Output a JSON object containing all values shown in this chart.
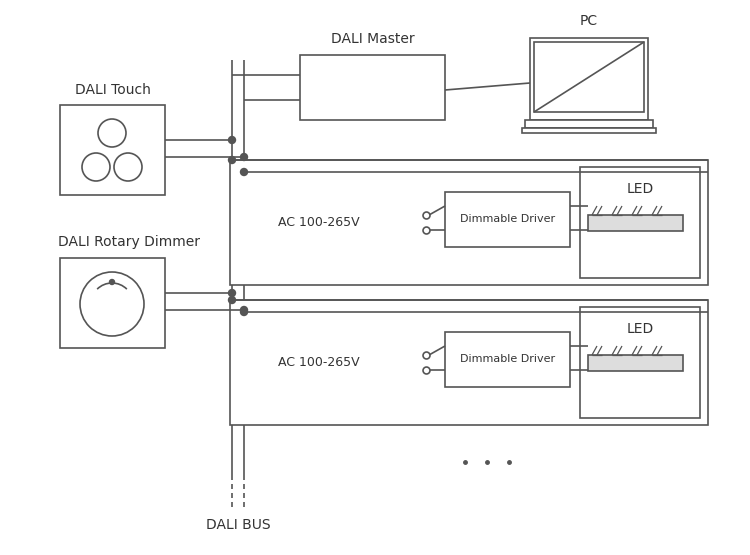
{
  "bg_color": "#ffffff",
  "line_color": "#555555",
  "text_color": "#333333",
  "labels": {
    "dali_touch": "DALI Touch",
    "dali_rotary": "DALI Rotary Dimmer",
    "dali_master": "DALI Master",
    "pc": "PC",
    "ac1": "AC 100-265V",
    "ac2": "AC 100-265V",
    "driver1": "Dimmable Driver",
    "driver2": "Dimmable Driver",
    "led1": "LED",
    "led2": "LED",
    "dali_bus": "DALI BUS"
  },
  "figsize": [
    7.5,
    5.55
  ],
  "dpi": 100
}
